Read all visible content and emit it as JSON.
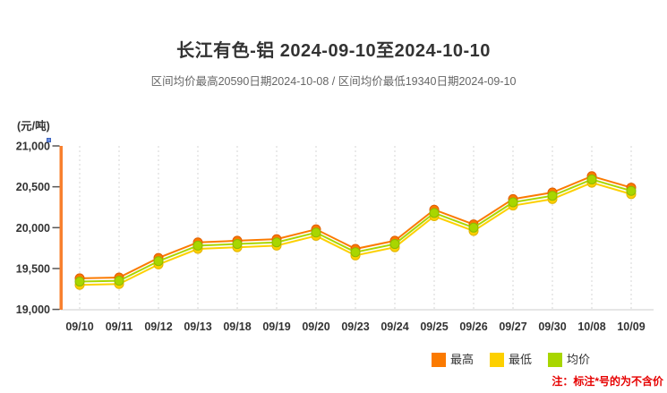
{
  "header": {
    "title": "长江有色-铝 2024-09-10至2024-10-10",
    "subtitle": "区间均价最高20590日期2024-10-08 / 区间均价最低19340日期2024-09-10"
  },
  "chart": {
    "unit_label": "(元/吨)",
    "y_tick_labels": [
      "21,000",
      "20,500",
      "20,000",
      "19,500",
      "19,000"
    ],
    "axis_color": "#F8802E",
    "tick_color": "#555555",
    "gridline_color": "#D4D4D4",
    "baseline_color": "#CCCCCC",
    "label_color": "#333333"
  },
  "chart_data": {
    "type": "line",
    "title": "长江有色-铝 2024-09-10至2024-10-10",
    "xlabel": "",
    "ylabel": "元/吨",
    "ylim": [
      19000,
      21000
    ],
    "y_tick_step": 500,
    "grid": "vertical-dashed",
    "legend_position": "bottom-right",
    "categories": [
      "09/10",
      "09/11",
      "09/12",
      "09/13",
      "09/18",
      "09/19",
      "09/20",
      "09/23",
      "09/24",
      "09/25",
      "09/26",
      "09/27",
      "09/30",
      "10/08",
      "10/09"
    ],
    "series": [
      {
        "name": "最高",
        "color": "#FB7A00",
        "marker_stroke": "#E05E00",
        "values": [
          19380,
          19390,
          19630,
          19820,
          19840,
          19860,
          19980,
          19740,
          19840,
          20220,
          20040,
          20350,
          20430,
          20630,
          20490
        ]
      },
      {
        "name": "最低",
        "color": "#FDD000",
        "marker_stroke": "#E0B400",
        "values": [
          19300,
          19310,
          19550,
          19740,
          19760,
          19780,
          19900,
          19660,
          19760,
          20140,
          19960,
          20270,
          20350,
          20550,
          20410
        ]
      },
      {
        "name": "均价",
        "color": "#A8D600",
        "marker_stroke": "#8CBA00",
        "values": [
          19340,
          19350,
          19590,
          19780,
          19800,
          19820,
          19940,
          19700,
          19800,
          20180,
          20000,
          20310,
          20390,
          20590,
          20450
        ]
      }
    ]
  },
  "footnote": {
    "text": "注：标注*号的为不含价",
    "color": "#E60000"
  }
}
